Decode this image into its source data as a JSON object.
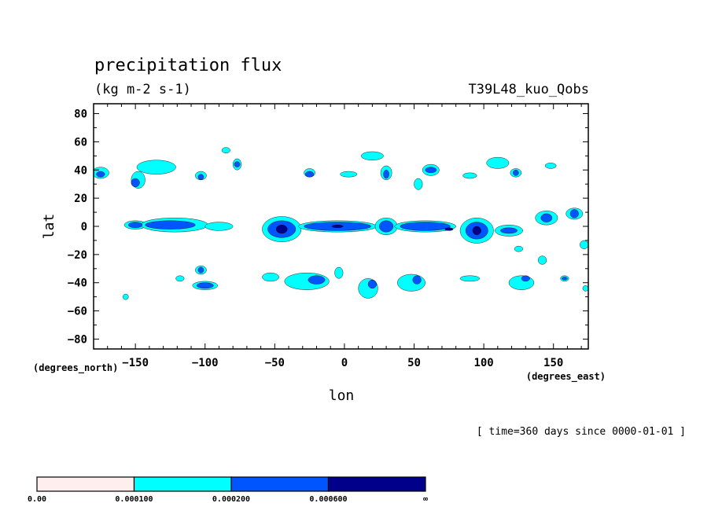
{
  "chart_data": {
    "type": "heatmap",
    "title": "precipitation flux",
    "subtitle": "(kg m-2 s-1)",
    "experiment": "T39L48_kuo_Qobs",
    "xlabel": "lon",
    "ylabel": "lat",
    "x_units": "(degrees_east)",
    "y_units": "(degrees_north)",
    "time_note": "[ time=360 days since 0000-01-01 ]",
    "xlim": [
      -180,
      175
    ],
    "ylim": [
      -87,
      87
    ],
    "x_ticks": [
      -150,
      -100,
      -50,
      0,
      50,
      100,
      150
    ],
    "x_tick_labels": [
      "−150",
      "−100",
      "−50",
      "0",
      "50",
      "100",
      "150"
    ],
    "y_ticks": [
      80,
      60,
      40,
      20,
      0,
      -20,
      -40,
      -60,
      -80
    ],
    "y_tick_labels": [
      "80",
      "60",
      "40",
      "20",
      "0",
      "−20",
      "−40",
      "−60",
      "−80"
    ],
    "legend": {
      "bounds": [
        "0.00",
        "0.000100",
        "0.000200",
        "0.000600",
        "∞"
      ],
      "colors": [
        "#ffeeee",
        "#00ffff",
        "#0055ff",
        "#00008b"
      ]
    },
    "regions": [
      {
        "level": 1,
        "lon": -175,
        "lat": 38,
        "rx": 6,
        "ry": 4
      },
      {
        "level": 1,
        "lon": -135,
        "lat": 42,
        "rx": 14,
        "ry": 5
      },
      {
        "level": 1,
        "lon": -148,
        "lat": 33,
        "rx": 5,
        "ry": 6
      },
      {
        "level": 1,
        "lon": -103,
        "lat": 36,
        "rx": 4,
        "ry": 3
      },
      {
        "level": 1,
        "lon": -85,
        "lat": 54,
        "rx": 3,
        "ry": 2
      },
      {
        "level": 1,
        "lon": -77,
        "lat": 44,
        "rx": 3,
        "ry": 4
      },
      {
        "level": 1,
        "lon": -25,
        "lat": 38,
        "rx": 4,
        "ry": 3
      },
      {
        "level": 1,
        "lon": 3,
        "lat": 37,
        "rx": 6,
        "ry": 2
      },
      {
        "level": 1,
        "lon": 20,
        "lat": 50,
        "rx": 8,
        "ry": 3
      },
      {
        "level": 1,
        "lon": 30,
        "lat": 38,
        "rx": 4,
        "ry": 5
      },
      {
        "level": 1,
        "lon": 62,
        "lat": 40,
        "rx": 6,
        "ry": 4
      },
      {
        "level": 1,
        "lon": 110,
        "lat": 45,
        "rx": 8,
        "ry": 4
      },
      {
        "level": 1,
        "lon": 123,
        "lat": 38,
        "rx": 4,
        "ry": 3
      },
      {
        "level": 1,
        "lon": 148,
        "lat": 43,
        "rx": 4,
        "ry": 2
      },
      {
        "level": 1,
        "lon": 90,
        "lat": 36,
        "rx": 5,
        "ry": 2
      },
      {
        "level": 1,
        "lon": 53,
        "lat": 30,
        "rx": 3,
        "ry": 4
      },
      {
        "level": 1,
        "lon": -150,
        "lat": 1,
        "rx": 8,
        "ry": 3
      },
      {
        "level": 1,
        "lon": -122,
        "lat": 1,
        "rx": 24,
        "ry": 5
      },
      {
        "level": 1,
        "lon": -90,
        "lat": 0,
        "rx": 10,
        "ry": 3
      },
      {
        "level": 1,
        "lon": -45,
        "lat": -2,
        "rx": 14,
        "ry": 9
      },
      {
        "level": 1,
        "lon": -5,
        "lat": 0,
        "rx": 28,
        "ry": 4
      },
      {
        "level": 1,
        "lon": 30,
        "lat": 0,
        "rx": 8,
        "ry": 6
      },
      {
        "level": 1,
        "lon": 58,
        "lat": 0,
        "rx": 22,
        "ry": 4
      },
      {
        "level": 1,
        "lon": 95,
        "lat": -3,
        "rx": 12,
        "ry": 9
      },
      {
        "level": 1,
        "lon": 118,
        "lat": -3,
        "rx": 10,
        "ry": 4
      },
      {
        "level": 1,
        "lon": 145,
        "lat": 6,
        "rx": 8,
        "ry": 5
      },
      {
        "level": 1,
        "lon": 165,
        "lat": 9,
        "rx": 6,
        "ry": 4
      },
      {
        "level": 1,
        "lon": 172,
        "lat": -13,
        "rx": 3,
        "ry": 3
      },
      {
        "level": 1,
        "lon": 125,
        "lat": -16,
        "rx": 3,
        "ry": 2
      },
      {
        "level": 1,
        "lon": 142,
        "lat": -24,
        "rx": 3,
        "ry": 3
      },
      {
        "level": 1,
        "lon": -103,
        "lat": -31,
        "rx": 4,
        "ry": 3
      },
      {
        "level": 1,
        "lon": -100,
        "lat": -42,
        "rx": 9,
        "ry": 3
      },
      {
        "level": 1,
        "lon": -118,
        "lat": -37,
        "rx": 3,
        "ry": 2
      },
      {
        "level": 1,
        "lon": -53,
        "lat": -36,
        "rx": 6,
        "ry": 3
      },
      {
        "level": 1,
        "lon": -27,
        "lat": -39,
        "rx": 16,
        "ry": 6
      },
      {
        "level": 1,
        "lon": -4,
        "lat": -33,
        "rx": 3,
        "ry": 4
      },
      {
        "level": 1,
        "lon": 17,
        "lat": -44,
        "rx": 7,
        "ry": 7
      },
      {
        "level": 1,
        "lon": 48,
        "lat": -40,
        "rx": 10,
        "ry": 6
      },
      {
        "level": 1,
        "lon": 90,
        "lat": -37,
        "rx": 7,
        "ry": 2
      },
      {
        "level": 1,
        "lon": 127,
        "lat": -40,
        "rx": 9,
        "ry": 5
      },
      {
        "level": 1,
        "lon": 158,
        "lat": -37,
        "rx": 3,
        "ry": 2
      },
      {
        "level": 1,
        "lon": 173,
        "lat": -44,
        "rx": 2,
        "ry": 2
      },
      {
        "level": 1,
        "lon": -157,
        "lat": -50,
        "rx": 2,
        "ry": 2
      },
      {
        "level": 2,
        "lon": -175,
        "lat": 37,
        "rx": 3,
        "ry": 2
      },
      {
        "level": 2,
        "lon": -150,
        "lat": 31,
        "rx": 3,
        "ry": 3
      },
      {
        "level": 2,
        "lon": -103,
        "lat": 35,
        "rx": 2,
        "ry": 2
      },
      {
        "level": 2,
        "lon": -77,
        "lat": 44,
        "rx": 2,
        "ry": 2
      },
      {
        "level": 2,
        "lon": -25,
        "lat": 37,
        "rx": 3,
        "ry": 2
      },
      {
        "level": 2,
        "lon": 30,
        "lat": 37,
        "rx": 2,
        "ry": 3
      },
      {
        "level": 2,
        "lon": 62,
        "lat": 40,
        "rx": 4,
        "ry": 2
      },
      {
        "level": 2,
        "lon": 123,
        "lat": 38,
        "rx": 2,
        "ry": 2
      },
      {
        "level": 2,
        "lon": -150,
        "lat": 1,
        "rx": 5,
        "ry": 2
      },
      {
        "level": 2,
        "lon": -125,
        "lat": 1,
        "rx": 18,
        "ry": 3
      },
      {
        "level": 2,
        "lon": -45,
        "lat": -2,
        "rx": 10,
        "ry": 6
      },
      {
        "level": 2,
        "lon": -5,
        "lat": 0,
        "rx": 24,
        "ry": 3
      },
      {
        "level": 2,
        "lon": 30,
        "lat": 0,
        "rx": 5,
        "ry": 4
      },
      {
        "level": 2,
        "lon": 58,
        "lat": 0,
        "rx": 18,
        "ry": 3
      },
      {
        "level": 2,
        "lon": 95,
        "lat": -3,
        "rx": 8,
        "ry": 6
      },
      {
        "level": 2,
        "lon": 118,
        "lat": -3,
        "rx": 6,
        "ry": 2
      },
      {
        "level": 2,
        "lon": 145,
        "lat": 6,
        "rx": 4,
        "ry": 3
      },
      {
        "level": 2,
        "lon": 165,
        "lat": 9,
        "rx": 3,
        "ry": 3
      },
      {
        "level": 2,
        "lon": -103,
        "lat": -31,
        "rx": 2,
        "ry": 2
      },
      {
        "level": 2,
        "lon": -100,
        "lat": -42,
        "rx": 6,
        "ry": 2
      },
      {
        "level": 2,
        "lon": -20,
        "lat": -38,
        "rx": 6,
        "ry": 3
      },
      {
        "level": 2,
        "lon": 20,
        "lat": -41,
        "rx": 3,
        "ry": 3
      },
      {
        "level": 2,
        "lon": 52,
        "lat": -38,
        "rx": 3,
        "ry": 3
      },
      {
        "level": 2,
        "lon": 130,
        "lat": -37,
        "rx": 3,
        "ry": 2
      },
      {
        "level": 2,
        "lon": 158,
        "lat": -37,
        "rx": 2,
        "ry": 1
      },
      {
        "level": 3,
        "lon": -45,
        "lat": -2,
        "rx": 4,
        "ry": 3
      },
      {
        "level": 3,
        "lon": -5,
        "lat": 0,
        "rx": 4,
        "ry": 1
      },
      {
        "level": 3,
        "lon": 95,
        "lat": -3,
        "rx": 3,
        "ry": 3
      },
      {
        "level": 3,
        "lon": 75,
        "lat": -2,
        "rx": 3,
        "ry": 1
      }
    ]
  }
}
